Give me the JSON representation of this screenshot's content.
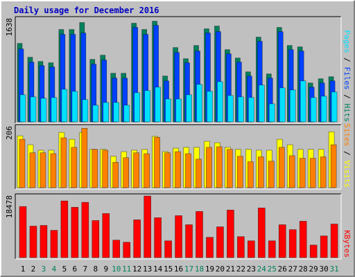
{
  "chart_data": [
    {
      "type": "bar",
      "title": "Daily usage for December 2016",
      "ylim": [
        0,
        1690
      ],
      "yticks": [
        1638
      ],
      "series": [
        {
          "name": "Hits",
          "color": "#00805c",
          "values": [
            1277,
            1051,
            983,
            961,
            1503,
            1503,
            1616,
            1017,
            1085,
            791,
            791,
            1605,
            1503,
            1638,
            746,
            1209,
            1028,
            1243,
            1514,
            1559,
            1175,
            1039,
            814,
            1379,
            780,
            1537,
            1243,
            1220,
            633,
            701,
            735
          ]
        },
        {
          "name": "Files",
          "color": "#0040ff",
          "values": [
            1186,
            972,
            915,
            893,
            1424,
            1424,
            1446,
            938,
            1006,
            712,
            712,
            1537,
            1424,
            1571,
            667,
            1130,
            961,
            1153,
            1446,
            1469,
            1107,
            972,
            746,
            1311,
            712,
            1469,
            1175,
            1153,
            565,
            633,
            667
          ]
        },
        {
          "name": "Pages",
          "color": "#00e0ff",
          "values": [
            441,
            407,
            384,
            396,
            531,
            497,
            362,
            271,
            316,
            316,
            271,
            475,
            509,
            565,
            373,
            373,
            441,
            610,
            497,
            655,
            429,
            407,
            396,
            599,
            294,
            554,
            520,
            667,
            396,
            418,
            486
          ]
        }
      ]
    },
    {
      "type": "bar",
      "ylim": [
        0,
        214
      ],
      "yticks": [
        206
      ],
      "series": [
        {
          "name": "Visits",
          "color": "#ffff00",
          "values": [
            180,
            149,
            130,
            130,
            192,
            168,
            192,
            133,
            133,
            109,
            125,
            130,
            133,
            178,
            125,
            137,
            140,
            140,
            161,
            156,
            140,
            133,
            133,
            130,
            130,
            168,
            149,
            133,
            133,
            133,
            194
          ]
        },
        {
          "name": "Sites",
          "color": "#ff8000",
          "values": [
            168,
            121,
            121,
            118,
            173,
            140,
            206,
            133,
            130,
            88,
            104,
            121,
            118,
            175,
            121,
            125,
            118,
            99,
            140,
            142,
            133,
            109,
            90,
            107,
            92,
            140,
            111,
            102,
            102,
            107,
            149
          ]
        }
      ]
    },
    {
      "type": "bar",
      "ylim": [
        0,
        18700
      ],
      "yticks": [
        18478
      ],
      "categories": [
        "1",
        "2",
        "3",
        "4",
        "5",
        "6",
        "7",
        "8",
        "9",
        "10",
        "11",
        "12",
        "13",
        "14",
        "15",
        "16",
        "17",
        "18",
        "19",
        "20",
        "21",
        "22",
        "23",
        "24",
        "25",
        "26",
        "27",
        "28",
        "29",
        "30",
        "31"
      ],
      "category_colors": [
        "#000000",
        "#000000",
        "#00805c",
        "#00805c",
        "#000000",
        "#000000",
        "#000000",
        "#000000",
        "#000000",
        "#00805c",
        "#00805c",
        "#000000",
        "#000000",
        "#000000",
        "#000000",
        "#000000",
        "#00805c",
        "#00805c",
        "#000000",
        "#000000",
        "#000000",
        "#000000",
        "#000000",
        "#00805c",
        "#00805c",
        "#000000",
        "#000000",
        "#000000",
        "#000000",
        "#000000",
        "#00805c"
      ],
      "series": [
        {
          "name": "KBytes",
          "color": "#ff0000",
          "values": [
            15330,
            9450,
            9660,
            8190,
            17010,
            15120,
            16590,
            11130,
            13230,
            5250,
            4620,
            11340,
            18478,
            11970,
            5040,
            12600,
            9870,
            13860,
            6090,
            9240,
            14280,
            6300,
            5040,
            14910,
            5040,
            9870,
            8400,
            10920,
            3780,
            6510,
            10080
          ]
        }
      ]
    }
  ]
}
